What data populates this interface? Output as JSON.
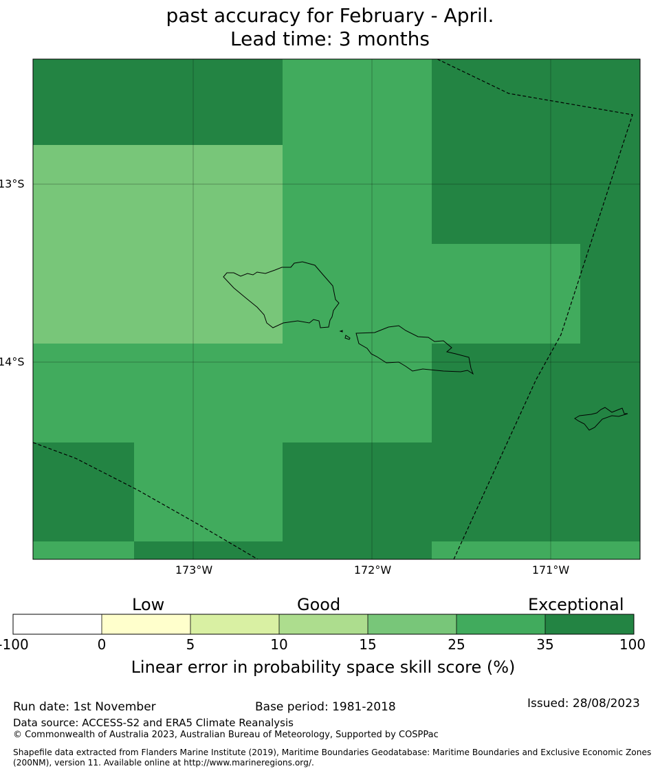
{
  "title": {
    "line1": "past accuracy for February - April.",
    "line2": "Lead time: 3 months"
  },
  "map": {
    "lat_labels": [
      "13°S",
      "14°S"
    ],
    "lon_labels": [
      "173°W",
      "172°W",
      "171°W"
    ],
    "colors": {
      "c1": "#78c679",
      "c2": "#41ab5d",
      "c3": "#238443"
    }
  },
  "colorbar": {
    "categories": [
      "Low",
      "Good",
      "Exceptional"
    ],
    "ticks": [
      "-100",
      "0",
      "5",
      "10",
      "15",
      "25",
      "35",
      "100"
    ],
    "colors": [
      "#ffffff",
      "#ffffcc",
      "#d9f0a3",
      "#addd8e",
      "#78c679",
      "#41ab5d",
      "#238443"
    ],
    "label": "Linear error in probability space skill score (%)"
  },
  "footer": {
    "run_date": "Run date: 1st November",
    "base_period": "Base period: 1981-2018",
    "issued": "Issued: 28/08/2023",
    "data_source": "Data source: ACCESS-S2 and ERA5 Climate Reanalysis",
    "copyright": "© Commonwealth of Australia 2023, Australian Bureau of Meteorology, Supported by COSPPac",
    "shapefile_line1": "Shapefile data extracted from Flanders Marine Institute (2019), Maritime Boundaries Geodatabase: Maritime Boundaries and Exclusive Economic Zones",
    "shapefile_line2": "(200NM), version 11. Available online at http://www.marineregions.org/."
  }
}
